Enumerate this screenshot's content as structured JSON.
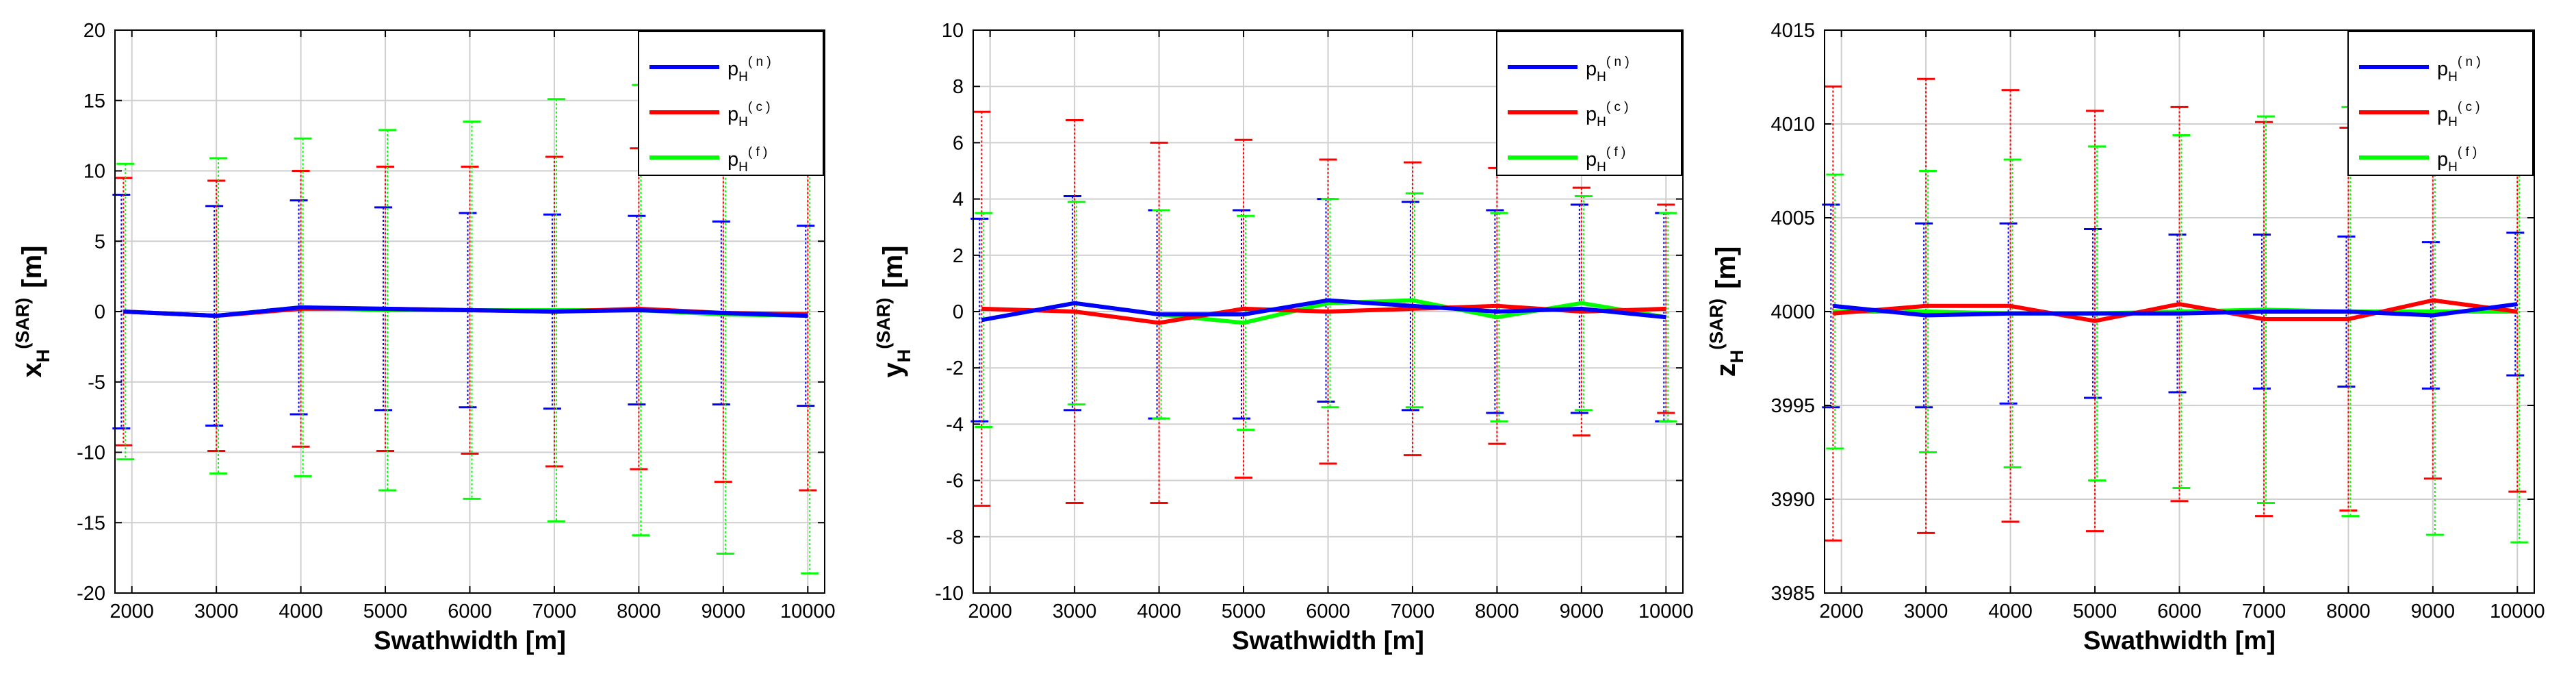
{
  "chart_data": [
    {
      "type": "line",
      "ylabel": {
        "base": "x",
        "sub": "H",
        "sup": "(SAR)",
        "unit": "[m]"
      },
      "xlabel": "Swathwidth [m]",
      "xlim": [
        1800,
        10200
      ],
      "ylim": [
        -20,
        20
      ],
      "xticks": [
        2000,
        3000,
        4000,
        5000,
        6000,
        7000,
        8000,
        9000,
        10000
      ],
      "yticks": [
        -20,
        -15,
        -10,
        -5,
        0,
        5,
        10,
        15,
        20
      ],
      "grid": true,
      "legend_position": "top-right",
      "x": [
        1900,
        3000,
        4000,
        5000,
        6000,
        7000,
        8000,
        9000,
        10000
      ],
      "series": [
        {
          "label": {
            "base": "p",
            "sub": "H",
            "sup": "( n )"
          },
          "color": "#0000ff",
          "values": [
            0,
            -0.3,
            0.3,
            0.2,
            0.1,
            0.0,
            0.1,
            -0.1,
            -0.3
          ],
          "err": [
            8.3,
            7.8,
            7.6,
            7.2,
            6.9,
            6.9,
            6.7,
            6.5,
            6.4
          ]
        },
        {
          "label": {
            "base": "p",
            "sub": "H",
            "sup": "( c )"
          },
          "color": "#ff0000",
          "values": [
            0,
            -0.3,
            0.2,
            0.2,
            0.1,
            0.0,
            0.2,
            -0.1,
            -0.2
          ],
          "err": [
            9.5,
            9.6,
            9.8,
            10.1,
            10.2,
            11.0,
            11.4,
            12.0,
            12.5
          ]
        },
        {
          "label": {
            "base": "p",
            "sub": "H",
            "sup": "( f )"
          },
          "color": "#00ff00",
          "values": [
            0,
            -0.3,
            0.3,
            0.1,
            0.1,
            0.1,
            0.1,
            -0.2,
            -0.3
          ],
          "err": [
            10.5,
            11.2,
            12.0,
            12.8,
            13.4,
            15.0,
            16.0,
            17.0,
            18.3
          ]
        }
      ]
    },
    {
      "type": "line",
      "ylabel": {
        "base": "y",
        "sub": "H",
        "sup": "(SAR)",
        "unit": "[m]"
      },
      "xlabel": "Swathwidth [m]",
      "xlim": [
        1800,
        10200
      ],
      "ylim": [
        -10,
        10
      ],
      "xticks": [
        2000,
        3000,
        4000,
        5000,
        6000,
        7000,
        8000,
        9000,
        10000
      ],
      "yticks": [
        -10,
        -8,
        -6,
        -4,
        -2,
        0,
        2,
        4,
        6,
        8,
        10
      ],
      "grid": true,
      "legend_position": "top-right",
      "x": [
        1900,
        3000,
        4000,
        5000,
        6000,
        7000,
        8000,
        9000,
        10000
      ],
      "series": [
        {
          "label": {
            "base": "p",
            "sub": "H",
            "sup": "( n )"
          },
          "color": "#0000ff",
          "values": [
            -0.3,
            0.3,
            -0.1,
            -0.1,
            0.4,
            0.2,
            0.0,
            0.1,
            -0.2
          ],
          "err": [
            3.6,
            3.8,
            3.7,
            3.7,
            3.6,
            3.7,
            3.6,
            3.7,
            3.7
          ]
        },
        {
          "label": {
            "base": "p",
            "sub": "H",
            "sup": "( c )"
          },
          "color": "#ff0000",
          "values": [
            0.1,
            0.0,
            -0.4,
            0.1,
            0.0,
            0.1,
            0.2,
            0.0,
            0.1
          ],
          "err": [
            7.0,
            6.8,
            6.4,
            6.0,
            5.4,
            5.2,
            4.9,
            4.4,
            3.7
          ]
        },
        {
          "label": {
            "base": "p",
            "sub": "H",
            "sup": "( f )"
          },
          "color": "#00ff00",
          "values": [
            -0.3,
            0.3,
            -0.1,
            -0.4,
            0.3,
            0.4,
            -0.2,
            0.3,
            -0.2
          ],
          "err": [
            3.8,
            3.6,
            3.7,
            3.8,
            3.7,
            3.8,
            3.7,
            3.8,
            3.7
          ]
        }
      ]
    },
    {
      "type": "line",
      "ylabel": {
        "base": "z",
        "sub": "H",
        "sup": "(SAR)",
        "unit": "[m]"
      },
      "xlabel": "Swathwidth [m]",
      "xlim": [
        1800,
        10200
      ],
      "ylim": [
        3985,
        4015
      ],
      "xticks": [
        2000,
        3000,
        4000,
        5000,
        6000,
        7000,
        8000,
        9000,
        10000
      ],
      "yticks": [
        3985,
        3990,
        3995,
        4000,
        4005,
        4010,
        4015
      ],
      "grid": true,
      "legend_position": "top-right",
      "x": [
        1900,
        3000,
        4000,
        5000,
        6000,
        7000,
        8000,
        9000,
        10000
      ],
      "series": [
        {
          "label": {
            "base": "p",
            "sub": "H",
            "sup": "( n )"
          },
          "color": "#0000ff",
          "values": [
            4000.3,
            3999.8,
            3999.9,
            3999.9,
            3999.9,
            4000.0,
            4000.0,
            3999.8,
            4000.4
          ],
          "err": [
            5.4,
            4.9,
            4.8,
            4.5,
            4.2,
            4.1,
            4.0,
            3.9,
            3.8
          ]
        },
        {
          "label": {
            "base": "p",
            "sub": "H",
            "sup": "( c )"
          },
          "color": "#ff0000",
          "values": [
            3999.9,
            4000.3,
            4000.3,
            3999.5,
            4000.4,
            3999.6,
            3999.6,
            4000.6,
            4000.0
          ],
          "err": [
            12.1,
            12.1,
            11.5,
            11.2,
            10.5,
            10.5,
            10.2,
            9.5,
            9.6
          ]
        },
        {
          "label": {
            "base": "p",
            "sub": "H",
            "sup": "( f )"
          },
          "color": "#00ff00",
          "values": [
            4000.0,
            4000.0,
            3999.9,
            3999.9,
            4000.0,
            4000.1,
            4000.0,
            4000.0,
            4000.0
          ],
          "err": [
            7.3,
            7.5,
            8.2,
            8.9,
            9.4,
            10.3,
            10.9,
            11.9,
            12.3
          ]
        }
      ]
    }
  ]
}
